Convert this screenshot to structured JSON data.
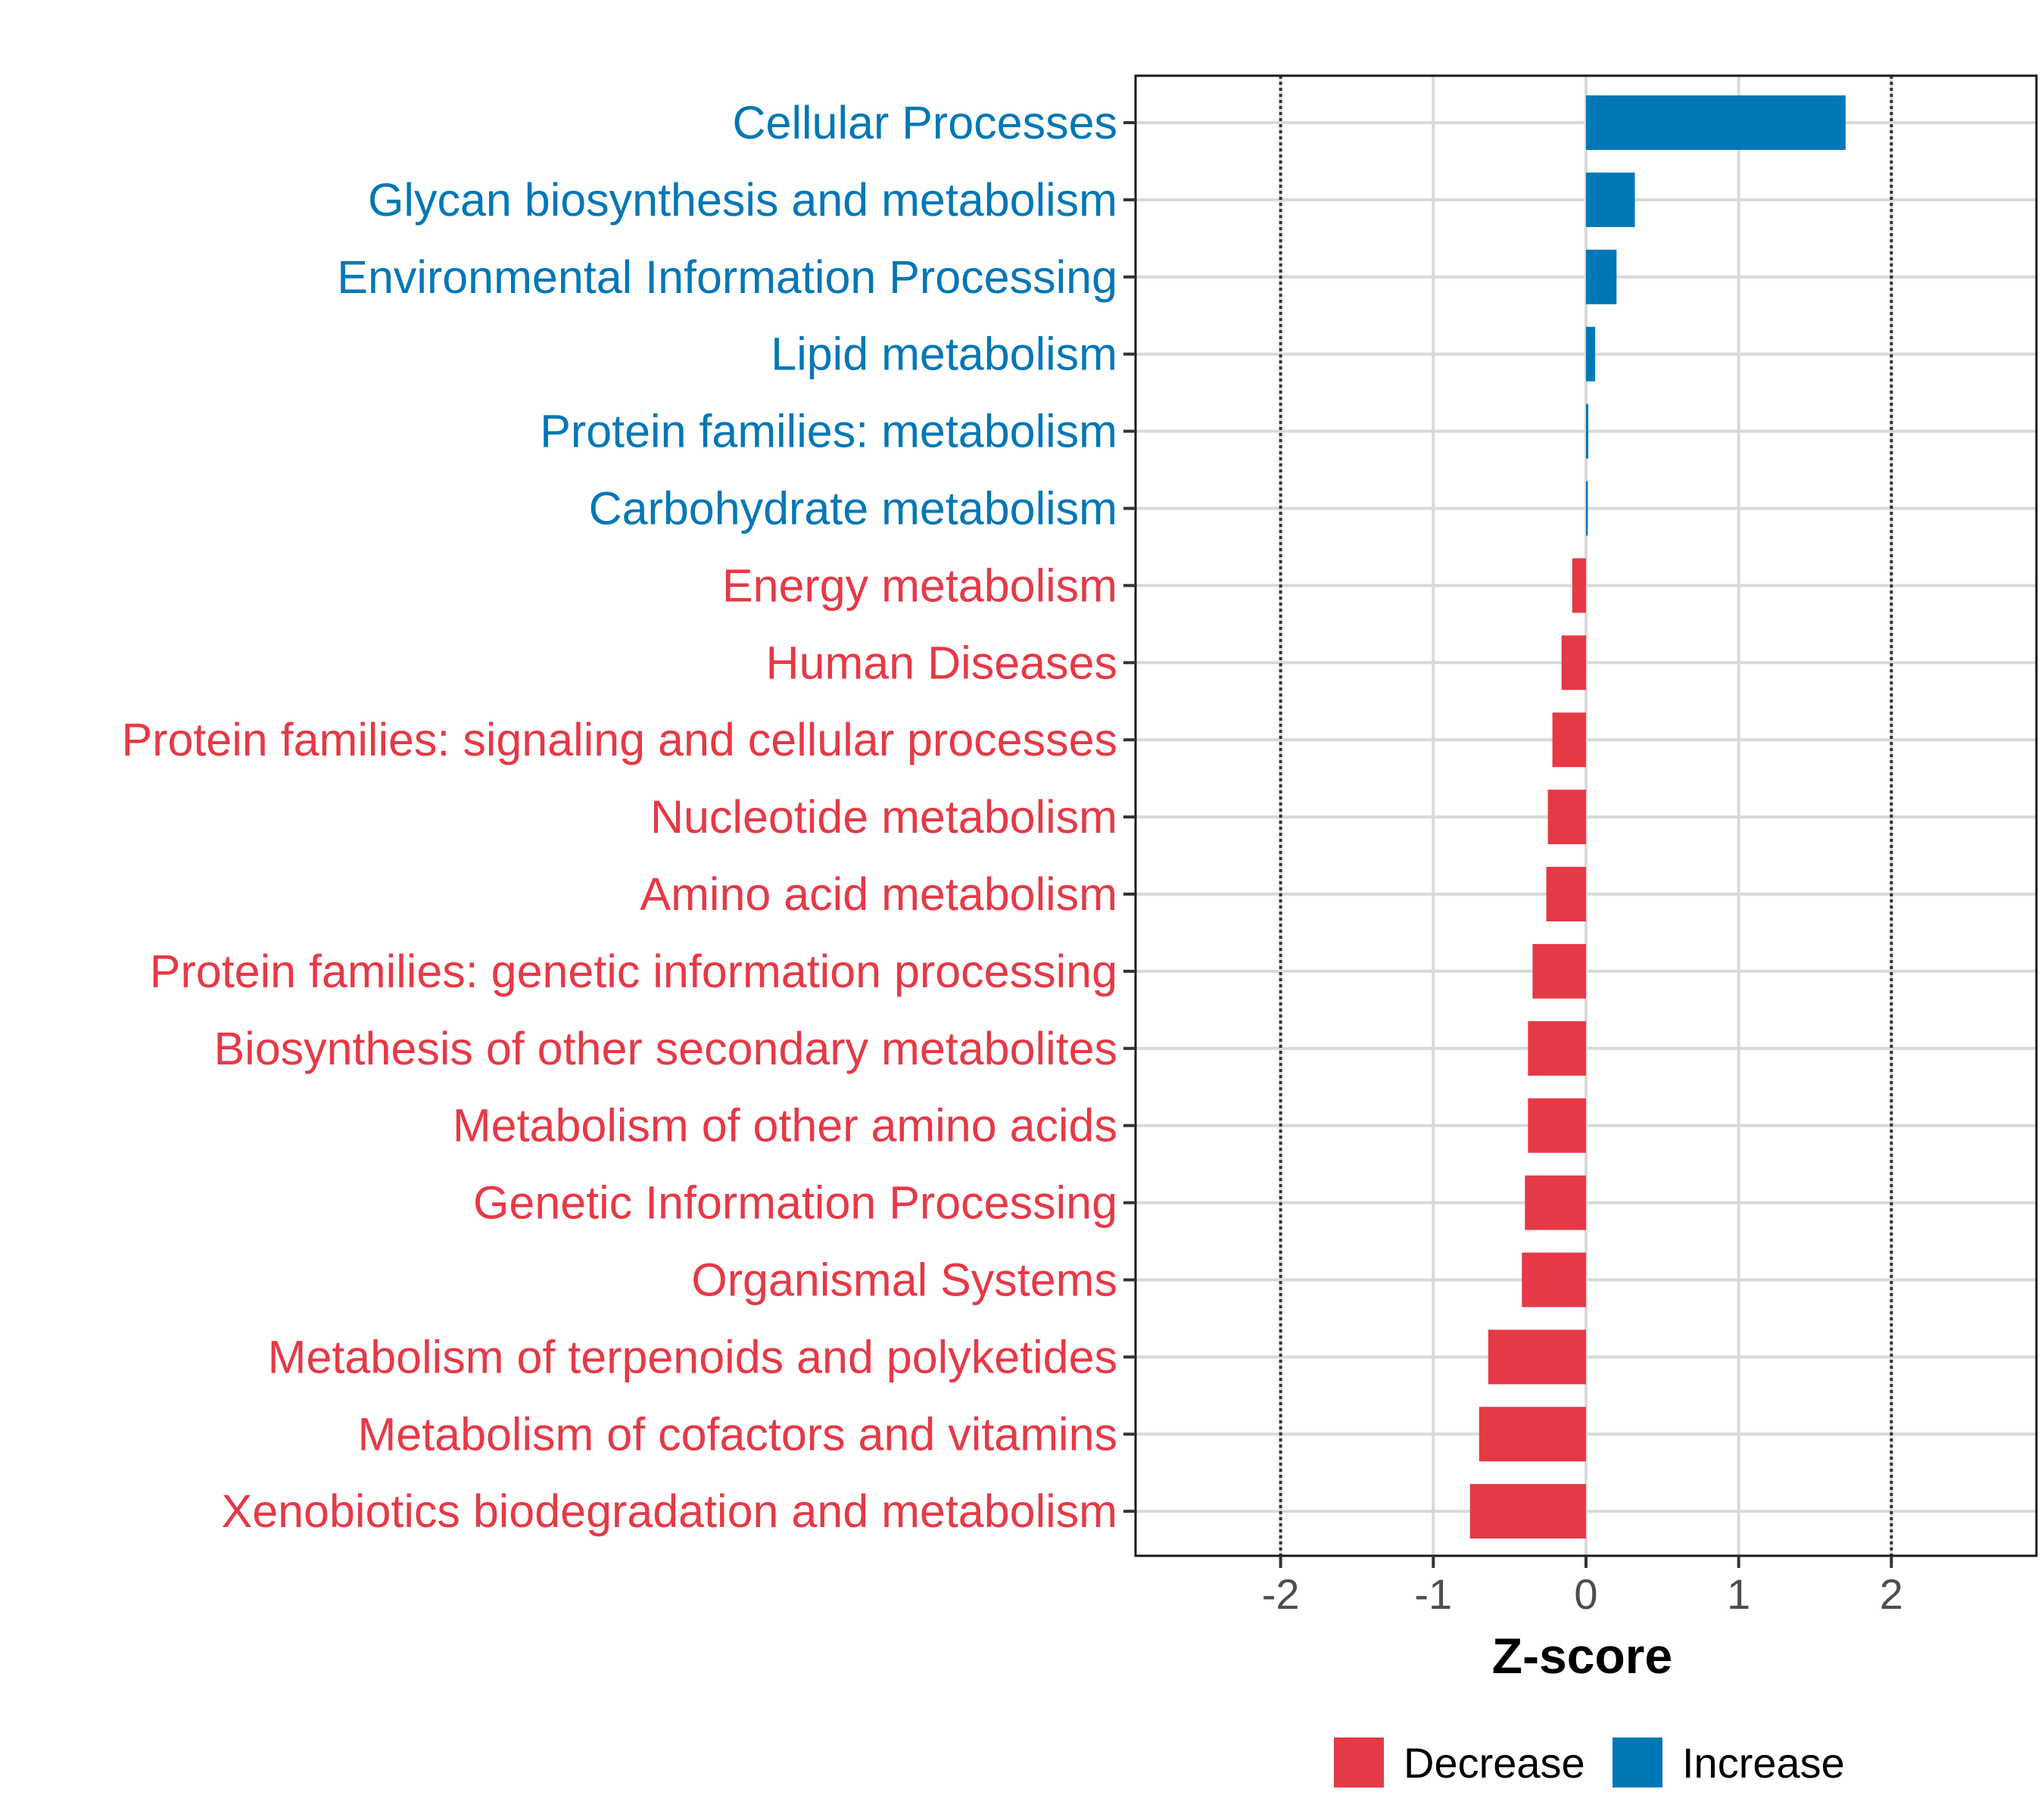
{
  "chart_data": {
    "type": "bar",
    "orientation": "horizontal",
    "title": "",
    "xlabel": "Z-score",
    "ylabel": "",
    "xlim": [
      -2.95,
      2.95
    ],
    "xticks": [
      -2,
      -1,
      0,
      1,
      2
    ],
    "xtick_labels": [
      "-2",
      "-1",
      "0",
      "1",
      "2"
    ],
    "reference_lines": [
      -2,
      2
    ],
    "grid": true,
    "categories": [
      "Cellular Processes",
      "Glycan biosynthesis and metabolism",
      "Environmental Information Processing",
      "Lipid metabolism",
      "Protein families: metabolism",
      "Carbohydrate metabolism",
      "Energy metabolism",
      "Human Diseases",
      "Protein families: signaling and cellular processes",
      "Nucleotide metabolism",
      "Amino acid metabolism",
      "Protein families: genetic information processing",
      "Biosynthesis of other secondary metabolites",
      "Metabolism of other amino acids",
      "Genetic Information Processing",
      "Organismal Systems",
      "Metabolism of terpenoids and polyketides",
      "Metabolism of cofactors and vitamins",
      "Xenobiotics biodegradation and metabolism"
    ],
    "values": [
      1.7,
      0.32,
      0.2,
      0.06,
      0.015,
      0.012,
      -0.09,
      -0.16,
      -0.22,
      -0.25,
      -0.26,
      -0.35,
      -0.38,
      -0.38,
      -0.4,
      -0.42,
      -0.64,
      -0.7,
      -0.76
    ],
    "groups": [
      "Increase",
      "Increase",
      "Increase",
      "Increase",
      "Increase",
      "Increase",
      "Decrease",
      "Decrease",
      "Decrease",
      "Decrease",
      "Decrease",
      "Decrease",
      "Decrease",
      "Decrease",
      "Decrease",
      "Decrease",
      "Decrease",
      "Decrease",
      "Decrease"
    ],
    "legend": {
      "position": "bottom",
      "entries": [
        {
          "label": "Decrease",
          "color": "#E63946"
        },
        {
          "label": "Increase",
          "color": "#0077B6"
        }
      ]
    },
    "colors": {
      "Decrease": "#E63946",
      "Increase": "#0077B6"
    }
  }
}
